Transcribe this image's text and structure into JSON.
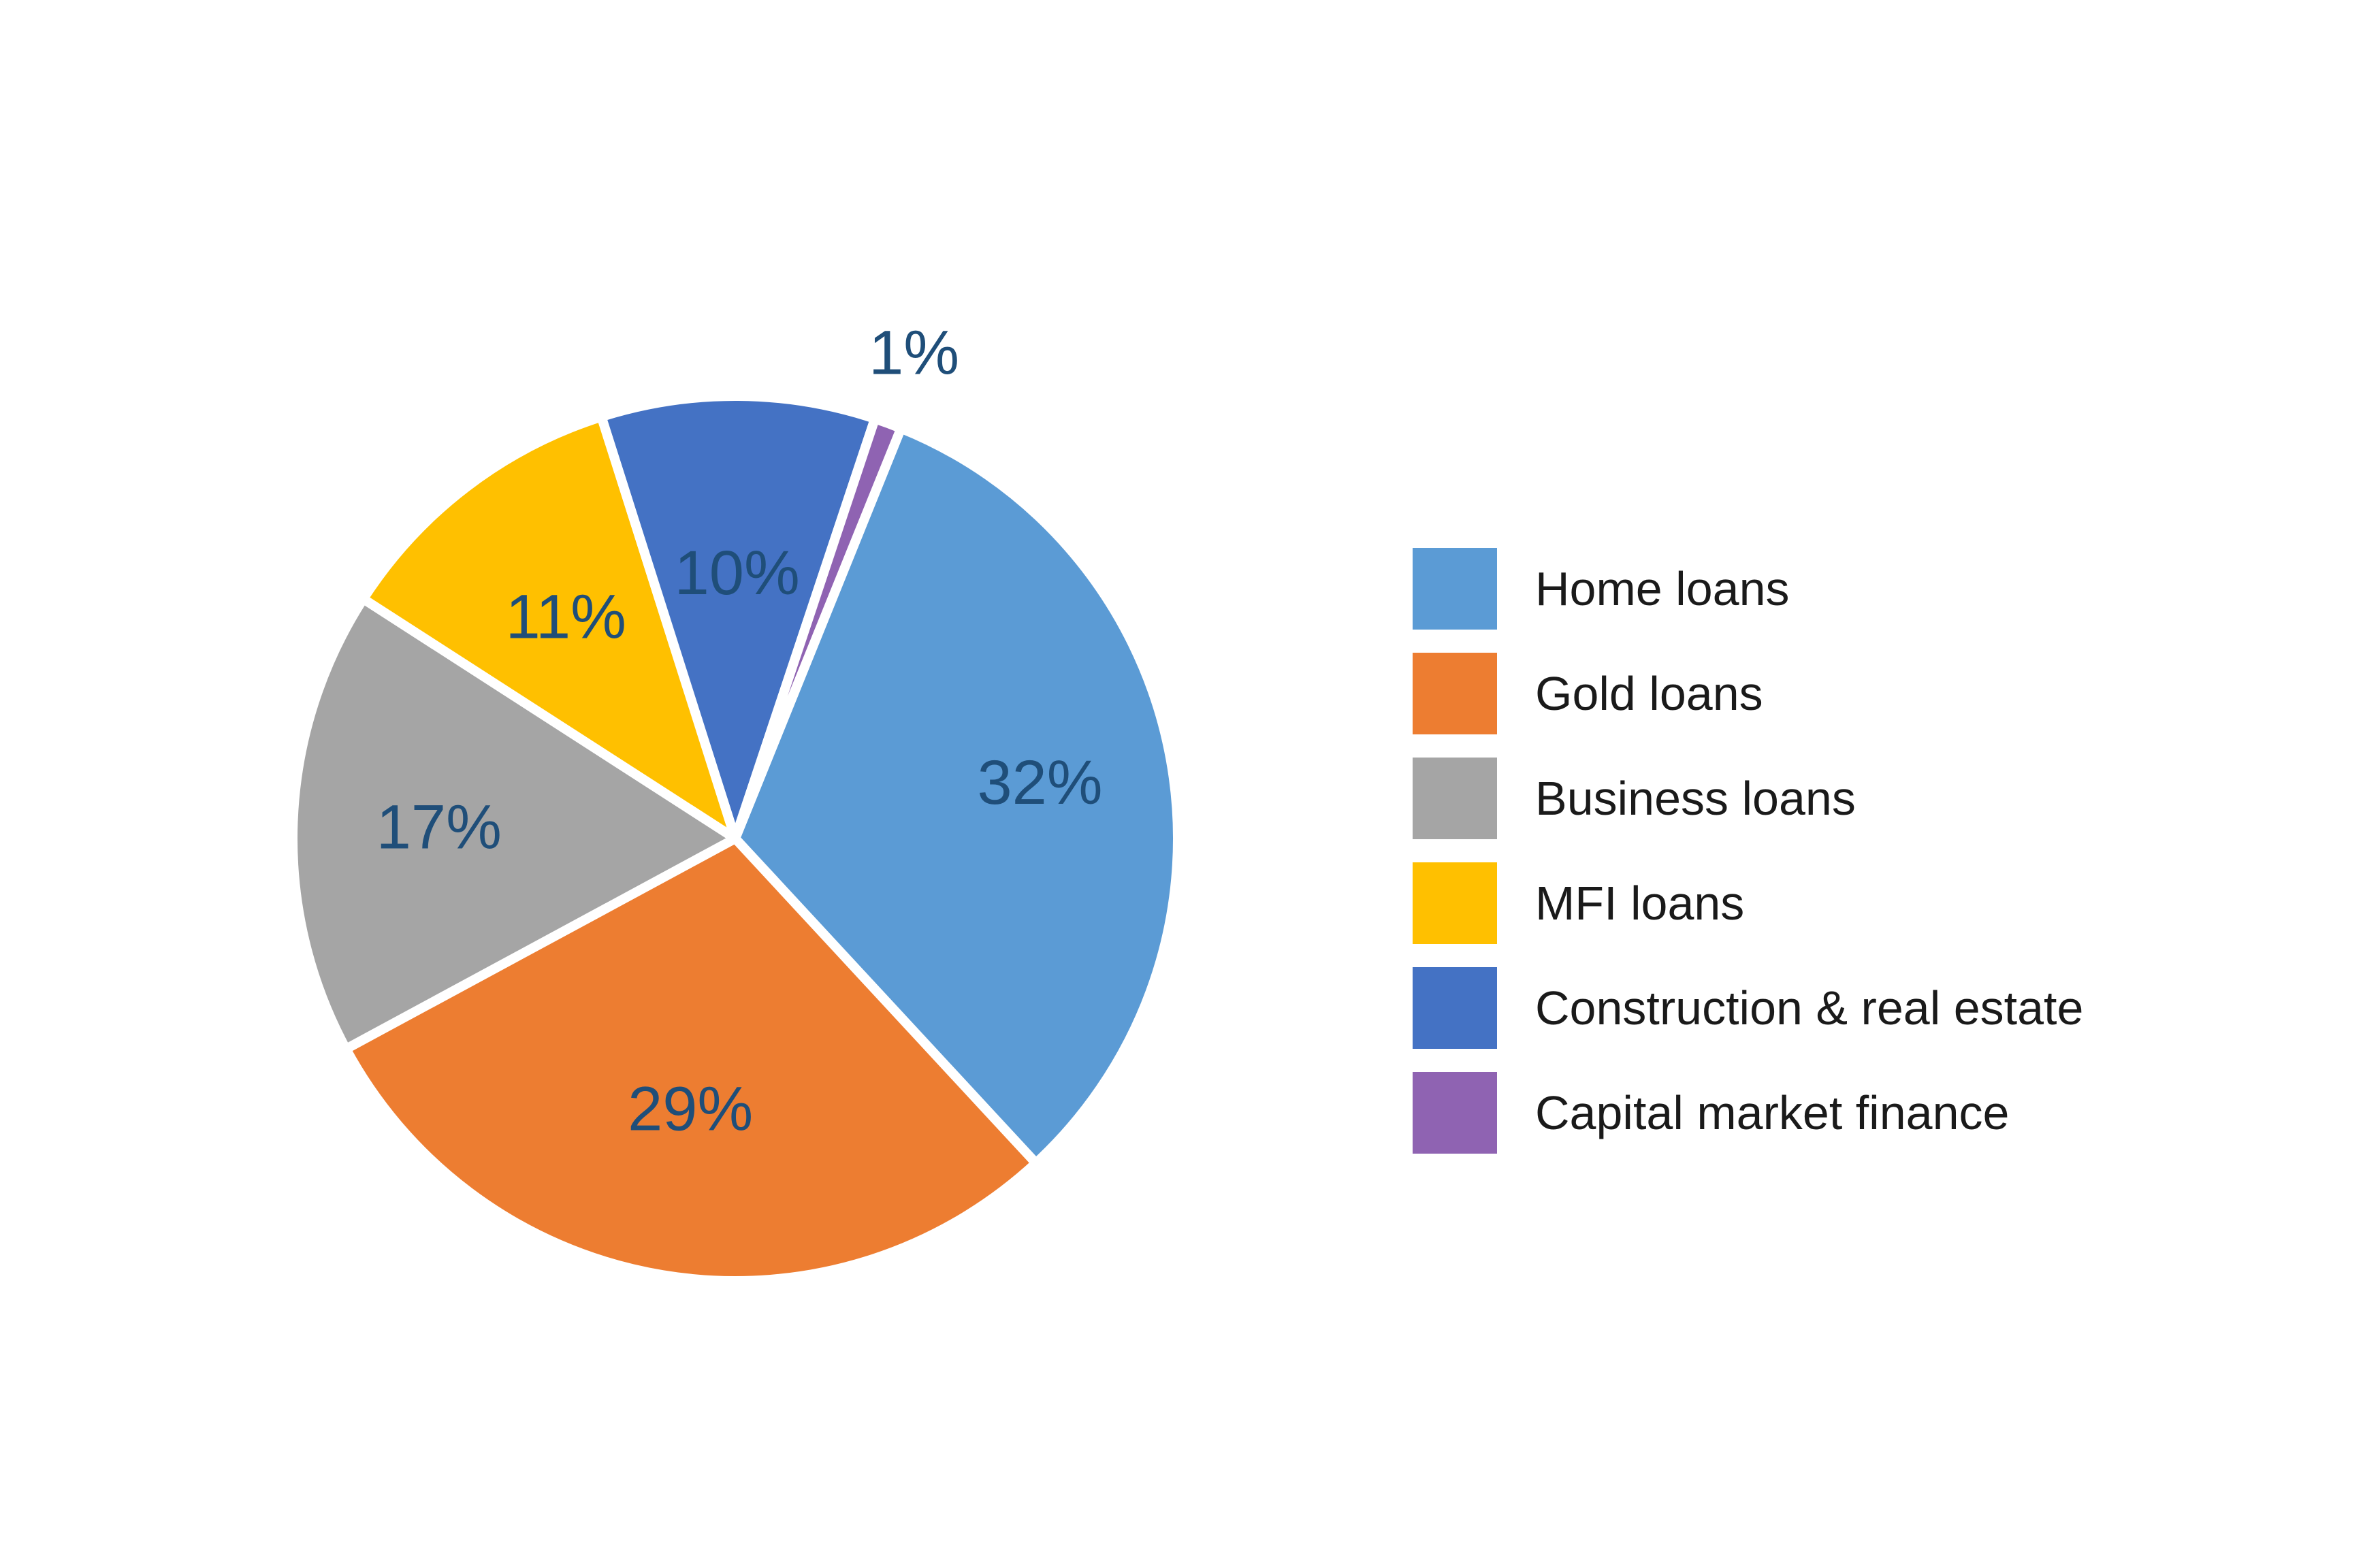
{
  "chart_data": {
    "type": "pie",
    "title": "",
    "categories": [
      "Home loans",
      "Gold loans",
      "Business loans",
      "MFI loans",
      "Construction & real estate",
      "Capital market finance"
    ],
    "values": [
      32,
      29,
      17,
      11,
      10,
      1
    ],
    "labels": [
      "32%",
      "29%",
      "17%",
      "11%",
      "10%",
      "1%"
    ],
    "colors": [
      "#5b9bd5",
      "#ed7d31",
      "#a5a5a5",
      "#ffc000",
      "#4472c4",
      "#8f63b2"
    ],
    "start_angle_deg": 22,
    "direction": "clockwise",
    "legend_position": "right"
  }
}
